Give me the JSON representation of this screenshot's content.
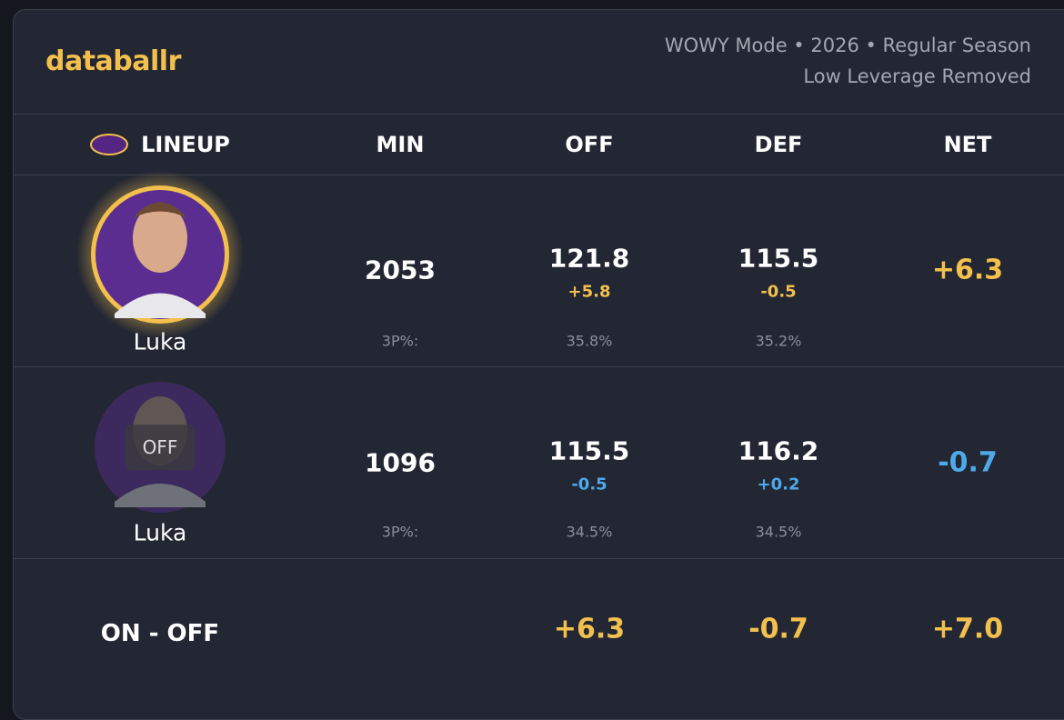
{
  "header": {
    "logo": "databallr",
    "subtitle_lines": [
      "WOWY Mode • 2026 • Regular Season",
      "Low Leverage Removed"
    ]
  },
  "table": {
    "columns": [
      "LINEUP",
      "MIN",
      "OFF",
      "DEF",
      "NET"
    ],
    "rows": [
      {
        "player": "Luka",
        "min": "2053",
        "off": "121.8",
        "off_diff": "+5.8",
        "def": "115.5",
        "def_diff": "-0.5",
        "net": "+6.3",
        "label_3p": "3P%:",
        "off_3p": "35.8%",
        "def_3p": "35.2%"
      },
      {
        "player": "Luka",
        "badge": "OFF",
        "min": "1096",
        "off": "115.5",
        "off_diff": "-0.5",
        "def": "116.2",
        "def_diff": "+0.2",
        "net": "-0.7",
        "label_3p": "3P%:",
        "off_3p": "34.5%",
        "def_3p": "34.5%"
      }
    ],
    "footer": {
      "label": "ON - OFF",
      "off": "+6.3",
      "def": "-0.7",
      "net": "+7.0"
    }
  }
}
